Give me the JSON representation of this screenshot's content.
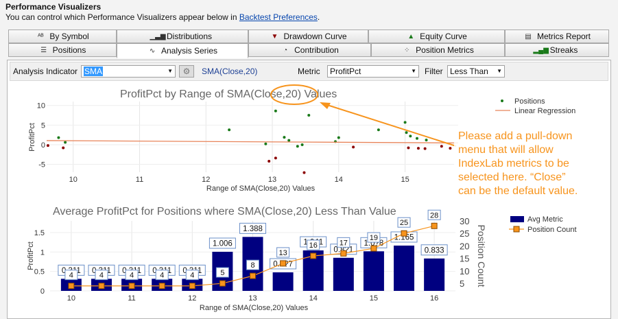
{
  "header": {
    "title": "Performance Visualizers",
    "subtitle_prefix": "You can control which Performance Visualizers appear below in ",
    "link": "Backtest Preferences",
    "subtitle_suffix": "."
  },
  "tabs_row1": [
    {
      "label": "By Symbol",
      "icon": "abc-icon"
    },
    {
      "label": "Distributions",
      "icon": "histogram-icon"
    },
    {
      "label": "Drawdown Curve",
      "icon": "drawdown-icon"
    },
    {
      "label": "Equity Curve",
      "icon": "equity-icon"
    },
    {
      "label": "Metrics Report",
      "icon": "report-icon"
    }
  ],
  "tabs_row2": [
    {
      "label": "Positions",
      "icon": "list-icon"
    },
    {
      "label": "Analysis Series",
      "icon": "line-icon",
      "active": true
    },
    {
      "label": "Contribution",
      "icon": "pie-icon"
    },
    {
      "label": "Position Metrics",
      "icon": "scatter-icon"
    },
    {
      "label": "Streaks",
      "icon": "bars-icon"
    }
  ],
  "toolbar": {
    "indicator_label": "Analysis Indicator",
    "indicator_value": "SMA",
    "indicator_expr": "SMA(Close,20)",
    "metric_label": "Metric",
    "metric_value": "ProfitPct",
    "filter_label": "Filter",
    "filter_value": "Less Than"
  },
  "annotation": {
    "lines": [
      "Please add a pull-down",
      "menu that will allow",
      "IndexLab metrics to be",
      "selected here. “Close”",
      "can be the default value."
    ],
    "color": "#f7941d"
  },
  "chart_data": [
    {
      "type": "scatter",
      "title": "ProfitPct by Range of SMA(Close,20) Values",
      "xlabel": "Range of SMA(Close,20) Values",
      "ylabel": "ProfitPct",
      "xlim": [
        9.6,
        15.8
      ],
      "ylim": [
        -7,
        11
      ],
      "xticks": [
        10,
        11,
        12,
        13,
        14,
        15
      ],
      "yticks": [
        10,
        5,
        0,
        -5
      ],
      "legend_position": "top-right",
      "series": [
        {
          "name": "Positions",
          "color": "#1a7a1a",
          "points": [
            [
              9.78,
              1.8
            ],
            [
              9.88,
              0.6
            ],
            [
              12.35,
              3.8
            ],
            [
              12.9,
              0.2
            ],
            [
              13.05,
              8.6
            ],
            [
              13.18,
              1.9
            ],
            [
              13.25,
              1.1
            ],
            [
              13.38,
              -0.4
            ],
            [
              13.45,
              0.0
            ],
            [
              13.55,
              7.5
            ],
            [
              13.95,
              0.8
            ],
            [
              14.0,
              1.8
            ],
            [
              14.6,
              3.8
            ],
            [
              15.0,
              5.7
            ],
            [
              15.02,
              3.1
            ],
            [
              15.08,
              2.2
            ],
            [
              15.18,
              1.6
            ],
            [
              15.32,
              1.2
            ]
          ]
        },
        {
          "name": "",
          "color": "#8b0000",
          "points": [
            [
              9.62,
              -0.2
            ],
            [
              9.85,
              -0.8
            ],
            [
              12.95,
              -4.2
            ],
            [
              13.05,
              -3.4
            ],
            [
              13.48,
              -7.1
            ],
            [
              14.22,
              -0.6
            ],
            [
              15.05,
              -0.8
            ],
            [
              15.2,
              -0.9
            ],
            [
              15.3,
              -1.0
            ],
            [
              15.55,
              -0.4
            ],
            [
              15.68,
              -0.9
            ]
          ]
        }
      ],
      "regression": {
        "name": "Linear Regression",
        "color": "#e8845a",
        "x": [
          9.6,
          15.8
        ],
        "y": [
          1.05,
          0.45
        ]
      }
    },
    {
      "type": "bar",
      "title": "Average ProfitPct for Positions where SMA(Close,20) Less Than Value",
      "xlabel": "Range of SMA(Close,20) Values",
      "ylabel": "ProfitPct",
      "y2label": "Position Count",
      "xlim": [
        9.65,
        16.35
      ],
      "ylim": [
        0,
        1.8
      ],
      "y2lim": [
        2,
        30
      ],
      "xticks": [
        10,
        11,
        12,
        13,
        14,
        15,
        16
      ],
      "yticks": [
        0,
        0.5,
        1,
        1.5
      ],
      "y2ticks": [
        5,
        10,
        15,
        20,
        25,
        30
      ],
      "legend_position": "top-right",
      "x": [
        10,
        10.5,
        11,
        11.5,
        12,
        12.5,
        13,
        13.5,
        14,
        14.5,
        15,
        15.5,
        16
      ],
      "series": [
        {
          "name": "Avg Metric",
          "color": "#000080",
          "values": [
            0.311,
            0.311,
            0.311,
            0.311,
            0.311,
            1.006,
            1.388,
            0.477,
            1.041,
            0.851,
            1.018,
            1.165,
            0.833
          ],
          "labels": [
            "0.311",
            "0.311",
            "0.311",
            "0.311",
            "0.311",
            "1.006",
            "1.388",
            "0.4?7",
            "1.041",
            "0.8?1",
            "1.0?8",
            "1.165",
            "0.833"
          ]
        },
        {
          "name": "Position Count",
          "color": "#f7941d",
          "values": [
            4,
            4,
            4,
            4,
            4,
            5,
            8,
            13,
            16,
            17,
            19,
            25,
            28
          ]
        }
      ]
    }
  ]
}
